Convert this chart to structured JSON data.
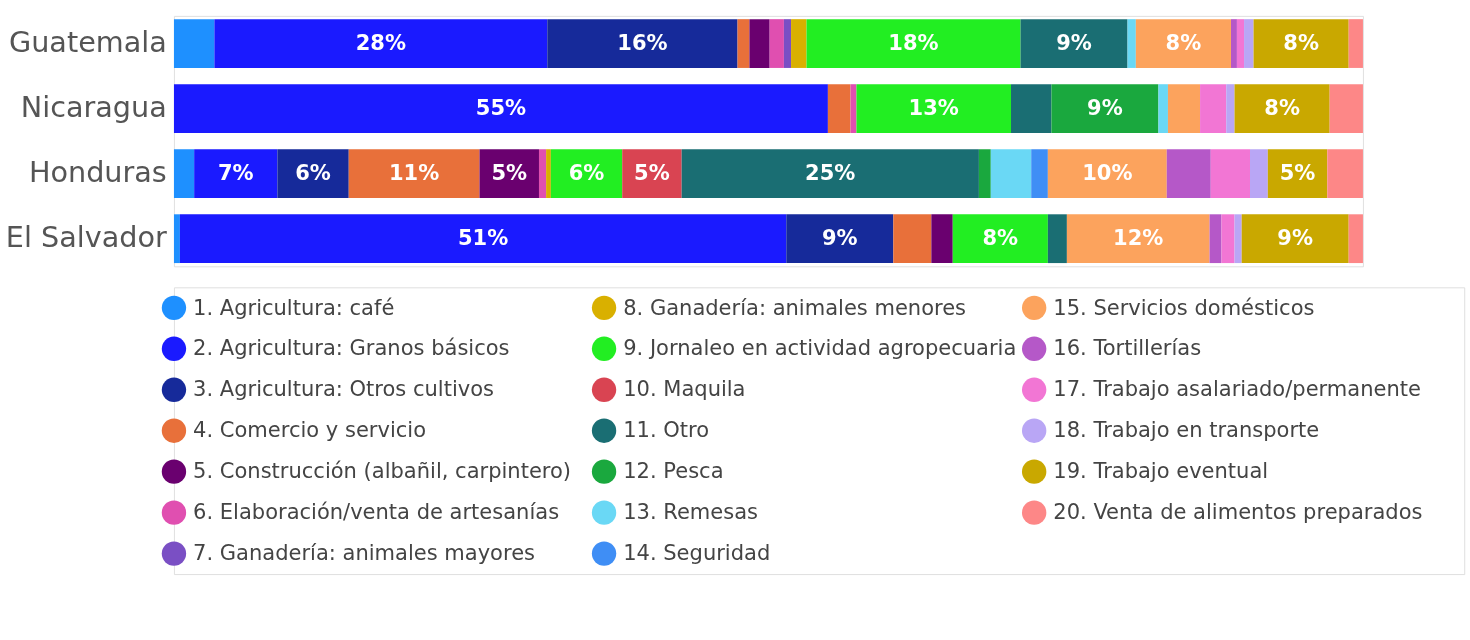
{
  "chart_data": {
    "type": "bar",
    "orientation": "horizontal",
    "stacked": true,
    "xlim": [
      0,
      100
    ],
    "tick_labels": "y",
    "legend": "bottom",
    "categories": [
      "Guatemala",
      "Nicaragua",
      "Honduras",
      "El Salvador"
    ],
    "series": [
      {
        "name": "1. Agricultura: café",
        "color": "#1e90ff",
        "values": [
          3.4,
          null,
          1.7,
          0.5
        ],
        "value_labels": [
          null,
          null,
          null,
          null
        ]
      },
      {
        "name": "2. Agricultura: Granos básicos",
        "color": "#1a1aff",
        "values": [
          28,
          55,
          7,
          51
        ],
        "value_labels": [
          "28%",
          "55%",
          "7%",
          "51%"
        ]
      },
      {
        "name": "3. Agricultura: Otros cultivos",
        "color": "#162a9a",
        "values": [
          16,
          null,
          6,
          9
        ],
        "value_labels": [
          "16%",
          null,
          "6%",
          "9%"
        ]
      },
      {
        "name": "4. Comercio y servicio",
        "color": "#e8703a",
        "values": [
          1,
          1.9,
          11,
          3.2
        ],
        "value_labels": [
          null,
          null,
          "11%",
          null
        ]
      },
      {
        "name": "5. Construcción (albañil, carpintero)",
        "color": "#6a006f",
        "values": [
          1.7,
          null,
          5,
          1.8
        ],
        "value_labels": [
          null,
          null,
          "5%",
          null
        ]
      },
      {
        "name": "6. Elaboración/venta de artesanías",
        "color": "#e04fb0",
        "values": [
          1.2,
          0.5,
          0.6,
          null
        ],
        "value_labels": [
          null,
          null,
          null,
          null
        ]
      },
      {
        "name": "7. Ganadería: animales mayores",
        "color": "#7a4fc4",
        "values": [
          0.6,
          null,
          null,
          null
        ],
        "value_labels": [
          null,
          null,
          null,
          null
        ]
      },
      {
        "name": "8. Ganadería: animales menores",
        "color": "#d9b000",
        "values": [
          1.3,
          null,
          0.4,
          null
        ],
        "value_labels": [
          null,
          null,
          null,
          null
        ]
      },
      {
        "name": "9. Jornaleo en actividad agropecuaria",
        "color": "#22ee22",
        "values": [
          18,
          13,
          6,
          8
        ],
        "value_labels": [
          "18%",
          "13%",
          "6%",
          "8%"
        ]
      },
      {
        "name": "10. Maquila",
        "color": "#d94452",
        "values": [
          null,
          null,
          5,
          null
        ],
        "value_labels": [
          null,
          null,
          "5%",
          null
        ]
      },
      {
        "name": "11. Otro",
        "color": "#1a6e73",
        "values": [
          9,
          3.4,
          25,
          1.6
        ],
        "value_labels": [
          "9%",
          null,
          "25%",
          null
        ]
      },
      {
        "name": "12. Pesca",
        "color": "#1aa83e",
        "values": [
          null,
          9,
          1,
          null
        ],
        "value_labels": [
          null,
          "9%",
          null,
          null
        ]
      },
      {
        "name": "13. Remesas",
        "color": "#6ad8f5",
        "values": [
          0.7,
          0.8,
          3.4,
          null
        ],
        "value_labels": [
          null,
          null,
          null,
          null
        ]
      },
      {
        "name": "14. Seguridad",
        "color": "#3f8ef5",
        "values": [
          null,
          null,
          1.4,
          null
        ],
        "value_labels": [
          null,
          null,
          null,
          null
        ]
      },
      {
        "name": "15. Servicios domésticos",
        "color": "#fca35d",
        "values": [
          8,
          2.7,
          10,
          12
        ],
        "value_labels": [
          "8%",
          null,
          "10%",
          "12%"
        ]
      },
      {
        "name": "16. Tortillerías",
        "color": "#b558c8",
        "values": [
          0.5,
          null,
          3.7,
          1
        ],
        "value_labels": [
          null,
          null,
          null,
          null
        ]
      },
      {
        "name": "17. Trabajo asalariado/permanente",
        "color": "#f276d4",
        "values": [
          0.6,
          2.2,
          3.3,
          1.1
        ],
        "value_labels": [
          null,
          null,
          null,
          null
        ]
      },
      {
        "name": "18. Trabajo en transporte",
        "color": "#b9a6f5",
        "values": [
          0.8,
          0.7,
          1.5,
          0.6
        ],
        "value_labels": [
          null,
          null,
          null,
          null
        ]
      },
      {
        "name": "19. Trabajo eventual",
        "color": "#c9a800",
        "values": [
          8,
          8,
          5,
          9
        ],
        "value_labels": [
          "8%",
          "8%",
          "5%",
          "9%"
        ]
      },
      {
        "name": "20. Venta de alimentos preparados",
        "color": "#fd8787",
        "values": [
          1.2,
          2.8,
          3,
          1.2
        ],
        "value_labels": [
          null,
          null,
          null,
          null
        ]
      }
    ]
  }
}
